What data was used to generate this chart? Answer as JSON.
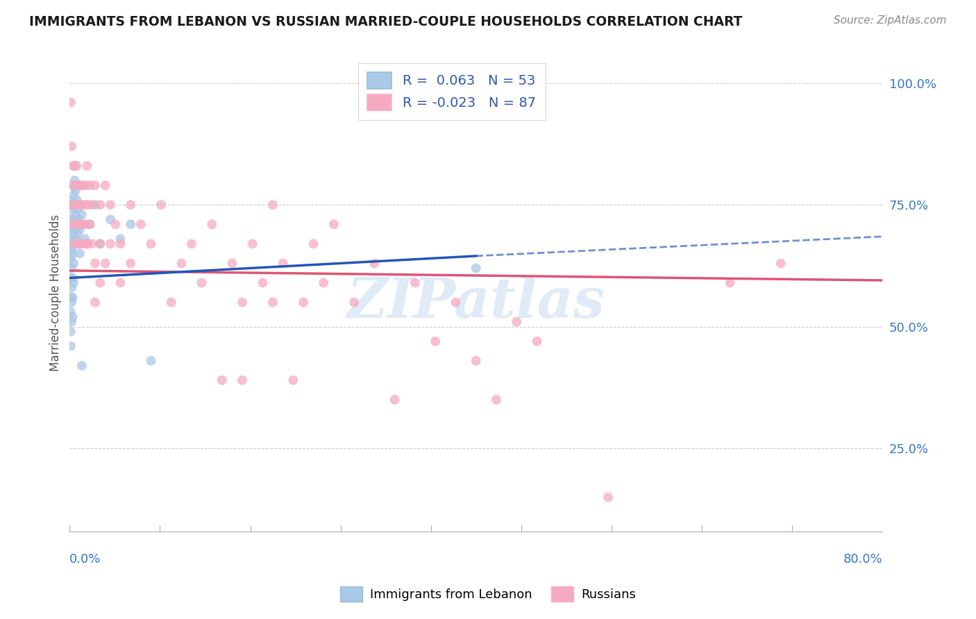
{
  "title": "IMMIGRANTS FROM LEBANON VS RUSSIAN MARRIED-COUPLE HOUSEHOLDS CORRELATION CHART",
  "source_text": "Source: ZipAtlas.com",
  "ylabel": "Married-couple Households",
  "right_yticks": [
    "100.0%",
    "75.0%",
    "50.0%",
    "25.0%"
  ],
  "right_ytick_vals": [
    1.0,
    0.75,
    0.5,
    0.25
  ],
  "legend_blue_label": "Immigrants from Lebanon",
  "legend_pink_label": "Russians",
  "legend_blue_R": "R =  0.063",
  "legend_pink_R": "R = -0.023",
  "legend_blue_N": "N = 53",
  "legend_pink_N": "N = 87",
  "blue_color": "#aac8e8",
  "pink_color": "#f5aabf",
  "blue_line_color": "#2255bb",
  "pink_line_color": "#dd5577",
  "blue_scatter": [
    [
      0.001,
      0.76
    ],
    [
      0.001,
      0.72
    ],
    [
      0.001,
      0.68
    ],
    [
      0.001,
      0.64
    ],
    [
      0.001,
      0.6
    ],
    [
      0.001,
      0.56
    ],
    [
      0.001,
      0.53
    ],
    [
      0.001,
      0.49
    ],
    [
      0.001,
      0.46
    ],
    [
      0.002,
      0.75
    ],
    [
      0.002,
      0.7
    ],
    [
      0.002,
      0.66
    ],
    [
      0.002,
      0.62
    ],
    [
      0.002,
      0.58
    ],
    [
      0.002,
      0.55
    ],
    [
      0.002,
      0.51
    ],
    [
      0.003,
      0.79
    ],
    [
      0.003,
      0.74
    ],
    [
      0.003,
      0.69
    ],
    [
      0.003,
      0.65
    ],
    [
      0.003,
      0.6
    ],
    [
      0.003,
      0.56
    ],
    [
      0.003,
      0.52
    ],
    [
      0.004,
      0.77
    ],
    [
      0.004,
      0.72
    ],
    [
      0.004,
      0.67
    ],
    [
      0.004,
      0.63
    ],
    [
      0.004,
      0.59
    ],
    [
      0.005,
      0.8
    ],
    [
      0.005,
      0.75
    ],
    [
      0.005,
      0.7
    ],
    [
      0.006,
      0.78
    ],
    [
      0.006,
      0.73
    ],
    [
      0.006,
      0.68
    ],
    [
      0.007,
      0.76
    ],
    [
      0.007,
      0.71
    ],
    [
      0.008,
      0.74
    ],
    [
      0.008,
      0.69
    ],
    [
      0.009,
      0.72
    ],
    [
      0.009,
      0.67
    ],
    [
      0.01,
      0.7
    ],
    [
      0.01,
      0.65
    ],
    [
      0.012,
      0.73
    ],
    [
      0.012,
      0.42
    ],
    [
      0.015,
      0.68
    ],
    [
      0.02,
      0.71
    ],
    [
      0.025,
      0.75
    ],
    [
      0.03,
      0.67
    ],
    [
      0.04,
      0.72
    ],
    [
      0.05,
      0.68
    ],
    [
      0.06,
      0.71
    ],
    [
      0.08,
      0.43
    ],
    [
      0.4,
      0.62
    ]
  ],
  "pink_scatter": [
    [
      0.001,
      0.96
    ],
    [
      0.002,
      0.87
    ],
    [
      0.003,
      0.83
    ],
    [
      0.003,
      0.75
    ],
    [
      0.004,
      0.79
    ],
    [
      0.004,
      0.71
    ],
    [
      0.005,
      0.83
    ],
    [
      0.005,
      0.75
    ],
    [
      0.005,
      0.67
    ],
    [
      0.006,
      0.79
    ],
    [
      0.006,
      0.71
    ],
    [
      0.007,
      0.83
    ],
    [
      0.007,
      0.75
    ],
    [
      0.008,
      0.71
    ],
    [
      0.008,
      0.67
    ],
    [
      0.009,
      0.79
    ],
    [
      0.009,
      0.71
    ],
    [
      0.01,
      0.75
    ],
    [
      0.01,
      0.67
    ],
    [
      0.011,
      0.79
    ],
    [
      0.011,
      0.71
    ],
    [
      0.012,
      0.75
    ],
    [
      0.012,
      0.67
    ],
    [
      0.013,
      0.79
    ],
    [
      0.014,
      0.71
    ],
    [
      0.015,
      0.75
    ],
    [
      0.015,
      0.67
    ],
    [
      0.016,
      0.79
    ],
    [
      0.016,
      0.71
    ],
    [
      0.017,
      0.83
    ],
    [
      0.017,
      0.67
    ],
    [
      0.018,
      0.75
    ],
    [
      0.018,
      0.67
    ],
    [
      0.02,
      0.79
    ],
    [
      0.02,
      0.71
    ],
    [
      0.022,
      0.75
    ],
    [
      0.022,
      0.67
    ],
    [
      0.025,
      0.79
    ],
    [
      0.025,
      0.63
    ],
    [
      0.025,
      0.55
    ],
    [
      0.03,
      0.75
    ],
    [
      0.03,
      0.67
    ],
    [
      0.03,
      0.59
    ],
    [
      0.035,
      0.79
    ],
    [
      0.035,
      0.63
    ],
    [
      0.04,
      0.75
    ],
    [
      0.04,
      0.67
    ],
    [
      0.045,
      0.71
    ],
    [
      0.05,
      0.67
    ],
    [
      0.05,
      0.59
    ],
    [
      0.06,
      0.75
    ],
    [
      0.06,
      0.63
    ],
    [
      0.07,
      0.71
    ],
    [
      0.08,
      0.67
    ],
    [
      0.09,
      0.75
    ],
    [
      0.1,
      0.55
    ],
    [
      0.11,
      0.63
    ],
    [
      0.12,
      0.67
    ],
    [
      0.13,
      0.59
    ],
    [
      0.14,
      0.71
    ],
    [
      0.15,
      0.39
    ],
    [
      0.16,
      0.63
    ],
    [
      0.17,
      0.55
    ],
    [
      0.17,
      0.39
    ],
    [
      0.18,
      0.67
    ],
    [
      0.19,
      0.59
    ],
    [
      0.2,
      0.55
    ],
    [
      0.2,
      0.75
    ],
    [
      0.21,
      0.63
    ],
    [
      0.22,
      0.39
    ],
    [
      0.23,
      0.55
    ],
    [
      0.24,
      0.67
    ],
    [
      0.25,
      0.59
    ],
    [
      0.26,
      0.71
    ],
    [
      0.28,
      0.55
    ],
    [
      0.3,
      0.63
    ],
    [
      0.32,
      0.35
    ],
    [
      0.34,
      0.59
    ],
    [
      0.36,
      0.47
    ],
    [
      0.38,
      0.55
    ],
    [
      0.4,
      0.43
    ],
    [
      0.42,
      0.35
    ],
    [
      0.44,
      0.51
    ],
    [
      0.46,
      0.47
    ],
    [
      0.53,
      0.15
    ],
    [
      0.65,
      0.59
    ],
    [
      0.7,
      0.63
    ]
  ],
  "xlim": [
    0.0,
    0.8
  ],
  "ylim": [
    0.08,
    1.06
  ],
  "blue_solid_xlim": [
    0.0,
    0.4
  ],
  "blue_dash_xlim": [
    0.4,
    0.8
  ],
  "blue_line_start_y": 0.6,
  "blue_line_end_solid_y": 0.645,
  "blue_line_end_dash_y": 0.685,
  "pink_line_start_y": 0.615,
  "pink_line_end_y": 0.595,
  "watermark": "ZIPatlas",
  "background_color": "#ffffff",
  "grid_color": "#cccccc"
}
